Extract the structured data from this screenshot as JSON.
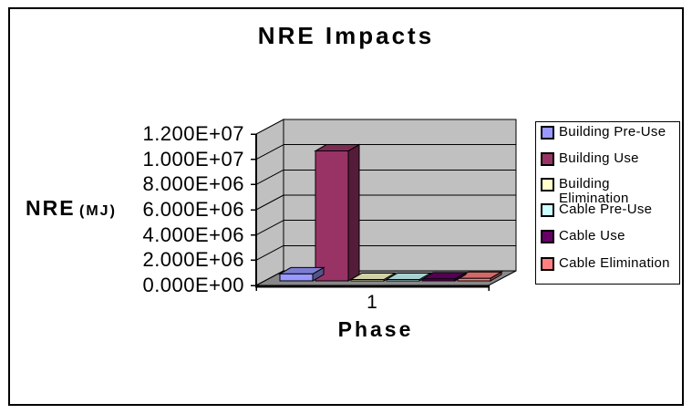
{
  "window": {
    "background": "#FFFFFF",
    "frame_border_color": "#000000"
  },
  "chart_data": {
    "type": "bar",
    "view": "3d-column",
    "title": "NRE Impacts",
    "xlabel": "Phase",
    "ylabel": "NRE (MJ)",
    "ylabel_main": "NRE",
    "ylabel_unit": "(MJ)",
    "categories": [
      "1"
    ],
    "series": [
      {
        "name": "Building Pre-Use",
        "color": "#9999FF",
        "values": [
          550000
        ]
      },
      {
        "name": "Building Use",
        "color": "#993366",
        "values": [
          10300000
        ]
      },
      {
        "name": "Building Elimination",
        "color": "#FFFFCC",
        "values": [
          100000
        ]
      },
      {
        "name": "Cable Pre-Use",
        "color": "#CCFFFF",
        "values": [
          100000
        ]
      },
      {
        "name": "Cable Use",
        "color": "#660066",
        "values": [
          150000
        ]
      },
      {
        "name": "Cable Elimination",
        "color": "#FF8080",
        "values": [
          200000
        ]
      }
    ],
    "yticks": [
      "0.000E+00",
      "2.000E+06",
      "4.000E+06",
      "6.000E+06",
      "8.000E+06",
      "1.000E+07",
      "1.200E+07"
    ],
    "ylim": [
      0,
      12000000
    ],
    "grid": true,
    "legend_position": "right",
    "wall_color": "#C0C0C0",
    "floor_color": "#888888",
    "gridline_color": "#000000"
  }
}
